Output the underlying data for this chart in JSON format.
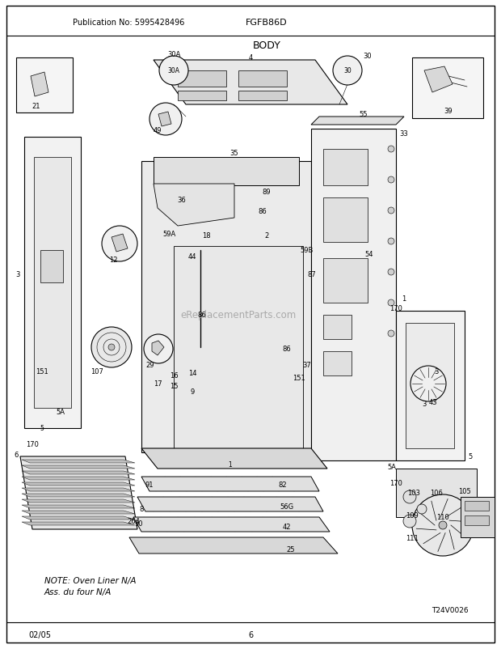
{
  "title": "BODY",
  "pub_no": "Publication No: 5995428496",
  "model": "FGFB86D",
  "date": "02/05",
  "page": "6",
  "watermark": "eReplacementParts.com",
  "note_line1": "NOTE: Oven Liner N/A",
  "note_line2": "Ass. du four N/A",
  "ref_code": "T24V0026",
  "bg_color": "#ffffff",
  "figsize": [
    6.2,
    8.03
  ],
  "dpi": 100
}
